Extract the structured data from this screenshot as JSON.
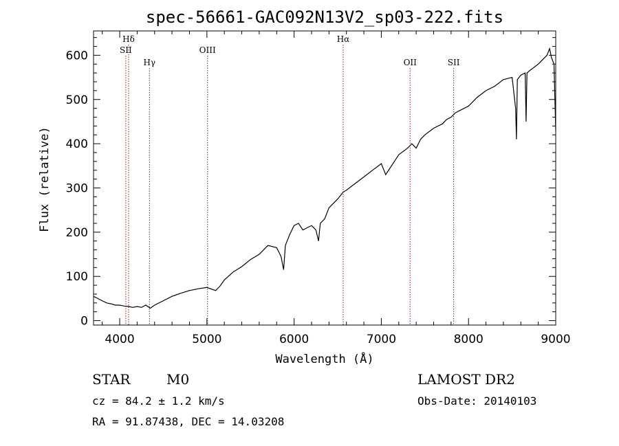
{
  "chart_data": {
    "type": "line",
    "title": "spec-56661-GAC092N13V2_sp03-222.fits",
    "xlabel": "Wavelength (Å)",
    "ylabel": "Flux (relative)",
    "xlim": [
      3700,
      9000
    ],
    "ylim": [
      -10,
      655
    ],
    "x_ticks": [
      4000,
      5000,
      6000,
      7000,
      8000,
      9000
    ],
    "y_ticks": [
      0,
      100,
      200,
      300,
      400,
      500,
      600
    ],
    "grid": false,
    "line_color": "#000000",
    "marker_color": "#8b1a1a",
    "spectral_lines": [
      {
        "name": "Hδ",
        "wavelength": 4102,
        "label_row": 1
      },
      {
        "name": "SII",
        "wavelength": 4070,
        "label_row": 2
      },
      {
        "name": "Hγ",
        "wavelength": 4341,
        "label_row": 3
      },
      {
        "name": "OIII",
        "wavelength": 5007,
        "label_row": 2
      },
      {
        "name": "Hα",
        "wavelength": 6563,
        "label_row": 1
      },
      {
        "name": "OII",
        "wavelength": 7330,
        "label_row": 3
      },
      {
        "name": "SII",
        "wavelength": 7830,
        "label_row": 3
      }
    ],
    "series": [
      {
        "x": [
          3700,
          3750,
          3800,
          3850,
          3900,
          3950,
          4000,
          4050,
          4100,
          4150,
          4200,
          4250,
          4300,
          4350,
          4400,
          4500,
          4600,
          4700,
          4800,
          4900,
          5000,
          5100,
          5150,
          5200,
          5300,
          5400,
          5500,
          5600,
          5700,
          5800,
          5850,
          5880,
          5900,
          5950,
          6000,
          6050,
          6100,
          6150,
          6200,
          6250,
          6280,
          6300,
          6350,
          6400,
          6500,
          6560,
          6600,
          6700,
          6800,
          6900,
          7000,
          7050,
          7100,
          7150,
          7200,
          7300,
          7350,
          7400,
          7450,
          7500,
          7600,
          7650,
          7700,
          7750,
          7800,
          7850,
          7900,
          8000,
          8100,
          8200,
          8300,
          8400,
          8500,
          8540,
          8550,
          8560,
          8600,
          8650,
          8660,
          8670,
          8700,
          8800,
          8850,
          8900,
          8930,
          8950,
          8980,
          9000
        ],
        "y": [
          55,
          50,
          45,
          40,
          38,
          35,
          35,
          33,
          32,
          30,
          32,
          30,
          35,
          28,
          35,
          45,
          55,
          62,
          68,
          72,
          75,
          68,
          78,
          92,
          110,
          122,
          138,
          150,
          170,
          165,
          145,
          115,
          170,
          195,
          215,
          220,
          205,
          210,
          215,
          205,
          180,
          220,
          230,
          255,
          275,
          290,
          295,
          310,
          325,
          340,
          355,
          330,
          345,
          360,
          375,
          390,
          400,
          390,
          410,
          420,
          435,
          440,
          445,
          455,
          460,
          470,
          475,
          485,
          505,
          520,
          530,
          545,
          550,
          480,
          410,
          545,
          555,
          560,
          450,
          560,
          565,
          580,
          590,
          600,
          615,
          595,
          580,
          430
        ]
      }
    ]
  },
  "info": {
    "object_class": "STAR",
    "subclass": "M0",
    "survey": "LAMOST DR2",
    "redshift": "cz = 84.2 ± 1.2 km/s",
    "obs_date": "Obs-Date: 20140103",
    "coords": "RA =  91.87438, DEC =  14.03208"
  }
}
